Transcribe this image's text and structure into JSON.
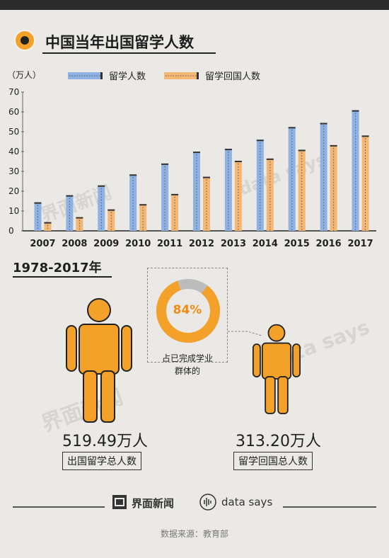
{
  "header": {
    "title": "中国当年出国留学人数"
  },
  "chart_data": {
    "type": "bar",
    "ylabel": "（万人）",
    "ylim": [
      0,
      70
    ],
    "yticks": [
      0,
      10,
      20,
      30,
      40,
      50,
      60,
      70
    ],
    "categories": [
      "2007",
      "2008",
      "2009",
      "2010",
      "2011",
      "2012",
      "2013",
      "2014",
      "2015",
      "2016",
      "2017"
    ],
    "legend_position": "top",
    "series": [
      {
        "name": "留学人数",
        "color": "#8fb2e4",
        "values": [
          14.4,
          17.98,
          22.93,
          28.47,
          33.97,
          39.96,
          41.39,
          45.98,
          52.37,
          54.45,
          60.84
        ]
      },
      {
        "name": "留学回国人数",
        "color": "#f4b774",
        "values": [
          4.4,
          6.93,
          10.83,
          13.48,
          18.62,
          27.29,
          35.35,
          36.48,
          40.91,
          43.25,
          48.09
        ]
      }
    ]
  },
  "period": "1978-2017年",
  "donut": {
    "percent": 84,
    "percent_label": "84%",
    "caption_line1": "占已完成学业",
    "caption_line2": "群体的",
    "color": "#f3a129",
    "rest_color": "#bcbcbc"
  },
  "left_person": {
    "value": "519.49万人",
    "label": "出国留学总人数",
    "color": "#f3a129"
  },
  "right_person": {
    "value": "313.20万人",
    "label": "留学回国总人数",
    "color": "#f3a129"
  },
  "footer": {
    "brand1": "界面新闻",
    "brand2": "data says",
    "source": "数据来源：教育部"
  },
  "watermarks": {
    "wm1": "界面新闻",
    "wm2": "data says"
  }
}
